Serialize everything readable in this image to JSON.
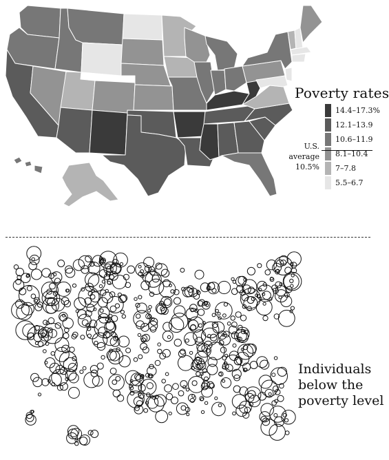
{
  "legend": {
    "title": "Poverty rates",
    "items": [
      {
        "label": "14.4–17.3%",
        "color": "#3a3a3a"
      },
      {
        "label": "12.1–13.9",
        "color": "#5b5b5b"
      },
      {
        "label": "10.6–11.9",
        "color": "#777777"
      },
      {
        "label": "8.1–10.4",
        "color": "#939393"
      },
      {
        "label": "7–7.8",
        "color": "#b4b4b4"
      },
      {
        "label": "5.5–6.7",
        "color": "#e6e6e6"
      }
    ],
    "average_label": "U.S. average",
    "average_value": "10.5%"
  },
  "bubble_map": {
    "caption_lines": [
      "Individuals",
      "below the",
      "poverty level"
    ]
  },
  "colors": {
    "state_border": "#ffffff",
    "bubble_stroke": "#111111",
    "background": "#ffffff"
  }
}
